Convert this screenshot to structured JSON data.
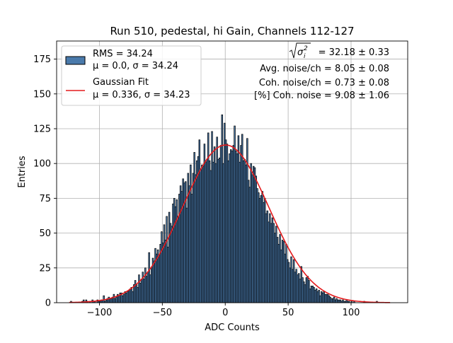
{
  "chart_data": {
    "type": "bar",
    "title": "Run 510, pedestal, hi Gain, Channels 112-127",
    "xlabel": "ADC Counts",
    "ylabel": "Entries",
    "xlim": [
      -134,
      145
    ],
    "ylim": [
      0,
      188
    ],
    "xticks": [
      -100,
      -50,
      0,
      50,
      100
    ],
    "xtick_labels": [
      "−100",
      "−50",
      "0",
      "50",
      "100"
    ],
    "yticks": [
      0,
      25,
      50,
      75,
      100,
      125,
      150,
      175
    ],
    "ytick_labels": [
      "0",
      "25",
      "50",
      "75",
      "100",
      "125",
      "150",
      "175"
    ],
    "grid": true,
    "legend_position": "upper-left",
    "histogram": {
      "name": "RMS = 34.24",
      "name_line2": "μ = 0.0, σ = 34.24",
      "bin_start": -123,
      "bin_width": 1,
      "color": "#4a7aab",
      "edge_color": "#000000",
      "counts": [
        1,
        0,
        0,
        0,
        0,
        0,
        0,
        0,
        0,
        1,
        2,
        0,
        2,
        1,
        0,
        1,
        0,
        2,
        1,
        1,
        0,
        2,
        1,
        1,
        2,
        2,
        5,
        1,
        2,
        3,
        4,
        3,
        3,
        4,
        6,
        3,
        4,
        6,
        5,
        7,
        7,
        5,
        6,
        8,
        7,
        8,
        9,
        10,
        11,
        8,
        13,
        16,
        13,
        11,
        20,
        14,
        17,
        22,
        17,
        25,
        19,
        22,
        36,
        20,
        25,
        32,
        30,
        39,
        35,
        38,
        34,
        42,
        51,
        43,
        56,
        45,
        62,
        40,
        65,
        57,
        55,
        71,
        75,
        69,
        74,
        62,
        78,
        84,
        80,
        89,
        86,
        87,
        68,
        93,
        84,
        99,
        78,
        93,
        108,
        92,
        102,
        105,
        117,
        96,
        99,
        98,
        114,
        101,
        103,
        122,
        102,
        95,
        123,
        101,
        112,
        100,
        119,
        103,
        104,
        113,
        135,
        100,
        129,
        117,
        114,
        102,
        107,
        110,
        109,
        113,
        127,
        109,
        107,
        120,
        101,
        113,
        121,
        102,
        103,
        99,
        118,
        88,
        83,
        100,
        92,
        98,
        97,
        91,
        82,
        79,
        75,
        77,
        80,
        72,
        75,
        64,
        66,
        58,
        64,
        57,
        61,
        57,
        50,
        55,
        47,
        42,
        49,
        38,
        45,
        44,
        35,
        42,
        31,
        29,
        25,
        33,
        24,
        31,
        22,
        24,
        20,
        21,
        17,
        26,
        18,
        15,
        13,
        18,
        19,
        16,
        10,
        12,
        12,
        11,
        9,
        10,
        8,
        9,
        5,
        8,
        7,
        8,
        6,
        6,
        6,
        5,
        4,
        3,
        3,
        4,
        2,
        3,
        2,
        2,
        2,
        1,
        2,
        1,
        1,
        2,
        1,
        1,
        0,
        1,
        0,
        1,
        0,
        0,
        0,
        0,
        0,
        0,
        0,
        1,
        0,
        0,
        0,
        0,
        0,
        0,
        0,
        0,
        0,
        1
      ]
    },
    "fit": {
      "name": "Gaussian Fit",
      "name_line2": "μ = 0.336, σ = 34.23",
      "mu": 0.336,
      "sigma": 34.23,
      "amplitude": 113.3,
      "x_range": [
        -124,
        131
      ],
      "color": "#e41a1c"
    },
    "annotations": {
      "sigma_text": " = 32.18 ± 0.33",
      "avg_noise": "Avg. noise/ch = 8.05 ± 0.08",
      "coh_noise": "Coh. noise/ch = 0.73 ± 0.08",
      "coh_pct": "[%] Coh. noise = 9.08 ± 1.06"
    }
  }
}
